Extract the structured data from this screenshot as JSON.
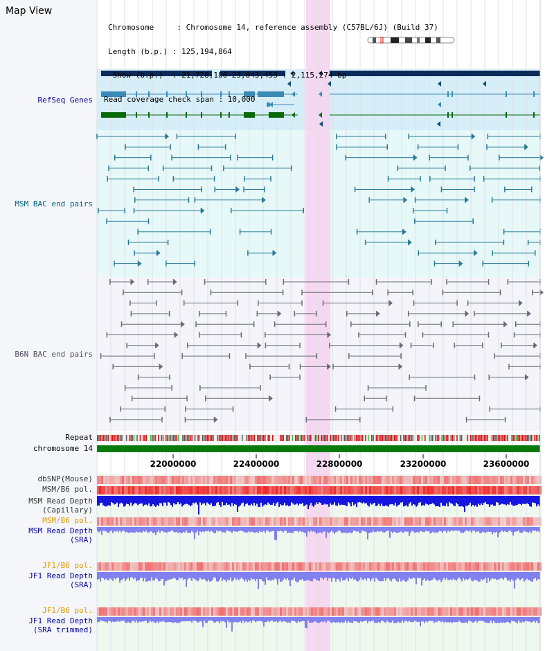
{
  "header": {
    "title": "Map View",
    "info_lines": [
      "Chromosome     : Chromosome 14, reference assembly (C57BL/6J) (Build 37)",
      "Length (b.p.) : 125,194,864",
      " Show (b.p.)  : 21,728,180-23,843,453 : 2,115,274 bp",
      "Read coverage check span : 10,000"
    ]
  },
  "tracks": [
    {
      "id": "refseq",
      "label": "RefSeq Genes",
      "color": "#0000aa",
      "kind": "genes"
    },
    {
      "id": "msm_bac",
      "label": "MSM BAC end pairs",
      "color": "#006080",
      "kind": "bac"
    },
    {
      "id": "b6n_bac",
      "label": "B6N BAC end pairs",
      "color": "#505060",
      "kind": "bac"
    },
    {
      "id": "repeat",
      "label": "Repeat",
      "color": "#000000",
      "kind": "repeat"
    },
    {
      "id": "chrom",
      "label": "chromosome 14",
      "color": "#000000",
      "kind": "chrom"
    }
  ],
  "axis": {
    "ticks": [
      "22000000",
      "22400000",
      "22800000",
      "23200000",
      "23600000"
    ]
  },
  "lower_tracks": [
    {
      "id": "dbsnp",
      "lines": [
        "dbSNP(Mouse)"
      ],
      "color": "#333333"
    },
    {
      "id": "msm_pol1",
      "lines": [
        "MSM/B6 pol."
      ],
      "color": "#333333"
    },
    {
      "id": "msm_depth_cap",
      "lines": [
        "MSM Read Depth",
        "(Capillary)"
      ],
      "color": "#333333"
    },
    {
      "id": "msm_pol2",
      "lines": [
        "MSM/B6 pol."
      ],
      "color": "#e89b00"
    },
    {
      "id": "msm_depth_sra",
      "lines": [
        "MSM Read Depth",
        "(SRA)"
      ],
      "color": "#0000aa"
    },
    {
      "id": "jf1_pol1",
      "lines": [
        "JF1/B6 pol."
      ],
      "color": "#e89b00"
    },
    {
      "id": "jf1_depth_sra",
      "lines": [
        "JF1 Read Depth",
        "(SRA)"
      ],
      "color": "#0000aa"
    },
    {
      "id": "jf1_pol2",
      "lines": [
        "JF1/B6 pol."
      ],
      "color": "#e89b00"
    },
    {
      "id": "jf1_depth_trim",
      "lines": [
        "JF1 Read Depth",
        "(SRA trimmed)"
      ],
      "color": "#0000aa"
    }
  ],
  "colors": {
    "refseq_band": "#d6eef8",
    "bac_band": "#e6f8f8",
    "highlight": "#f6d4f0",
    "gene_dark": "#0a2a5a",
    "gene_light": "#3a8ab8",
    "gene_green": "#0a6a0a",
    "chrom_bar": "#0a7a0a",
    "depth_blue": "#1515e0",
    "depth_sra": "#8080f0"
  }
}
